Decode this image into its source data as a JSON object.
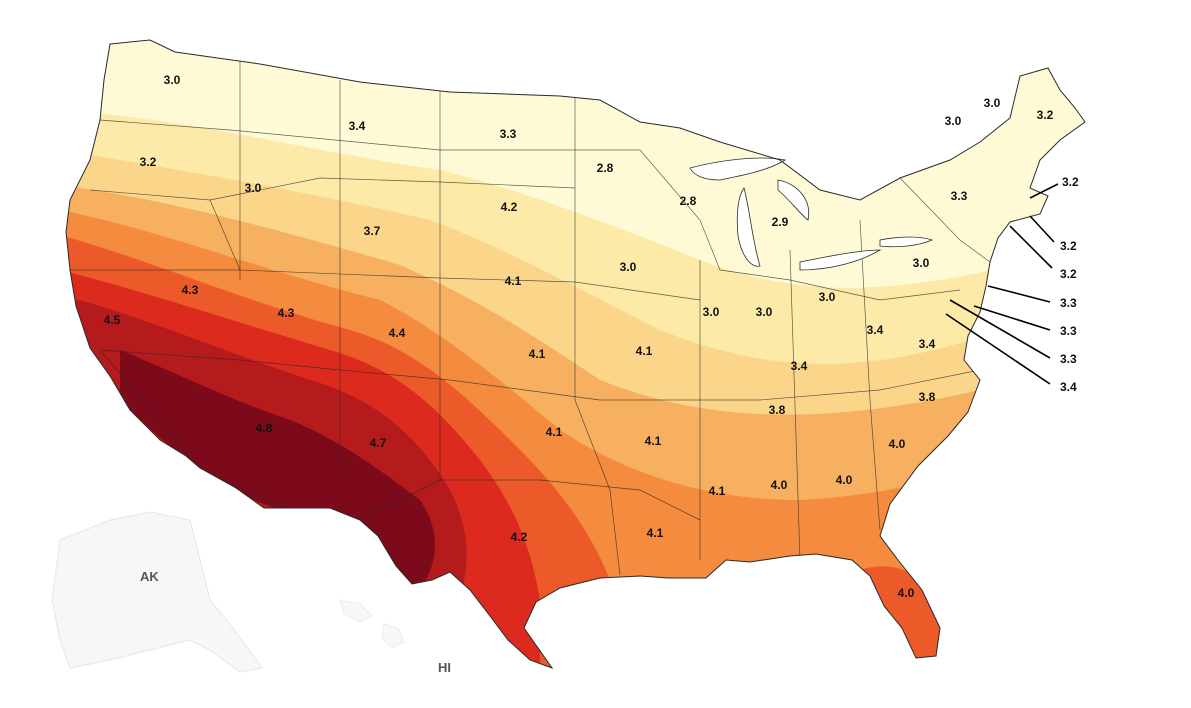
{
  "colors": {
    "band_1": "#fffad6",
    "band_2": "#fde9a8",
    "band_3": "#fbd58a",
    "band_4": "#f7b060",
    "band_5": "#f48b3e",
    "band_6": "#ec5a2a",
    "band_7": "#dc2a1e",
    "band_8": "#b51a1c",
    "band_9": "#7d0a1a",
    "borders": "#2a2a2a",
    "inset_fill": "#f7f7f7"
  },
  "regions": {
    "alaska_label": "AK",
    "hawaii_label": "HI"
  },
  "state_values": [
    {
      "id": "wa",
      "text": "3.0"
    },
    {
      "id": "mt",
      "text": "3.4"
    },
    {
      "id": "nd",
      "text": "3.3"
    },
    {
      "id": "mn",
      "text": "2.8"
    },
    {
      "id": "or",
      "text": "3.2"
    },
    {
      "id": "id",
      "text": "3.0"
    },
    {
      "id": "wy",
      "text": "3.7"
    },
    {
      "id": "sd",
      "text": "4.2"
    },
    {
      "id": "wi",
      "text": "2.8"
    },
    {
      "id": "mi",
      "text": "2.9"
    },
    {
      "id": "ne",
      "text": "4.1"
    },
    {
      "id": "ia",
      "text": "3.0"
    },
    {
      "id": "nv",
      "text": "4.3"
    },
    {
      "id": "ca",
      "text": "4.5"
    },
    {
      "id": "ut",
      "text": "4.3"
    },
    {
      "id": "co",
      "text": "4.4"
    },
    {
      "id": "ks",
      "text": "4.1"
    },
    {
      "id": "mo",
      "text": "4.1"
    },
    {
      "id": "il",
      "text": "3.0"
    },
    {
      "id": "in",
      "text": "3.0"
    },
    {
      "id": "oh",
      "text": "3.0"
    },
    {
      "id": "pa",
      "text": "3.0"
    },
    {
      "id": "ny",
      "text": "3.3"
    },
    {
      "id": "vt",
      "text": "3.0"
    },
    {
      "id": "nh",
      "text": "3.0"
    },
    {
      "id": "me",
      "text": "3.2"
    },
    {
      "id": "wv",
      "text": "3.4"
    },
    {
      "id": "va",
      "text": "3.4"
    },
    {
      "id": "ky",
      "text": "3.4"
    },
    {
      "id": "az",
      "text": "4.8"
    },
    {
      "id": "nm",
      "text": "4.7"
    },
    {
      "id": "ok",
      "text": "4.1"
    },
    {
      "id": "ar",
      "text": "4.1"
    },
    {
      "id": "tn",
      "text": "3.8"
    },
    {
      "id": "nc",
      "text": "3.8"
    },
    {
      "id": "sc",
      "text": "4.0"
    },
    {
      "id": "ga",
      "text": "4.0"
    },
    {
      "id": "al",
      "text": "4.0"
    },
    {
      "id": "ms",
      "text": "4.1"
    },
    {
      "id": "la",
      "text": "4.1"
    },
    {
      "id": "tx",
      "text": "4.2"
    },
    {
      "id": "fl",
      "text": "4.0"
    }
  ],
  "callouts": [
    {
      "id": "ma",
      "text": "3.2"
    },
    {
      "id": "ri",
      "text": "3.2"
    },
    {
      "id": "ct",
      "text": "3.2"
    },
    {
      "id": "nj",
      "text": "3.3"
    },
    {
      "id": "de",
      "text": "3.3"
    },
    {
      "id": "md",
      "text": "3.3"
    },
    {
      "id": "dc",
      "text": "3.4"
    }
  ]
}
